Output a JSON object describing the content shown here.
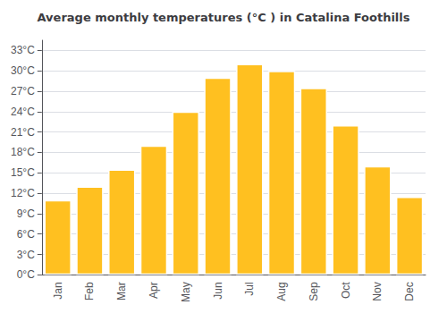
{
  "chart_data": {
    "type": "bar",
    "title": "Average monthly temperatures (°C ) in Catalina Foothills",
    "categories": [
      "Jan",
      "Feb",
      "Mar",
      "Apr",
      "May",
      "Jun",
      "Jul",
      "Aug",
      "Sep",
      "Oct",
      "Nov",
      "Dec"
    ],
    "values": [
      11.0,
      13.0,
      15.5,
      19.0,
      24.0,
      29.0,
      31.0,
      30.0,
      27.5,
      22.0,
      16.0,
      11.5
    ],
    "color": "#FFC020",
    "ylim": [
      0,
      34.5
    ],
    "yticks": [
      {
        "value": 0,
        "label": "0°C"
      },
      {
        "value": 3,
        "label": "3°C"
      },
      {
        "value": 6,
        "label": "6°C"
      },
      {
        "value": 9,
        "label": "9°C"
      },
      {
        "value": 12,
        "label": "12°C"
      },
      {
        "value": 15,
        "label": "15°C"
      },
      {
        "value": 18,
        "label": "18°C"
      },
      {
        "value": 21,
        "label": "21°C"
      },
      {
        "value": 24,
        "label": "24°C"
      },
      {
        "value": 27,
        "label": "27°C"
      },
      {
        "value": 30,
        "label": "30°C"
      },
      {
        "value": 33,
        "label": "33°C"
      }
    ],
    "grid": true
  }
}
